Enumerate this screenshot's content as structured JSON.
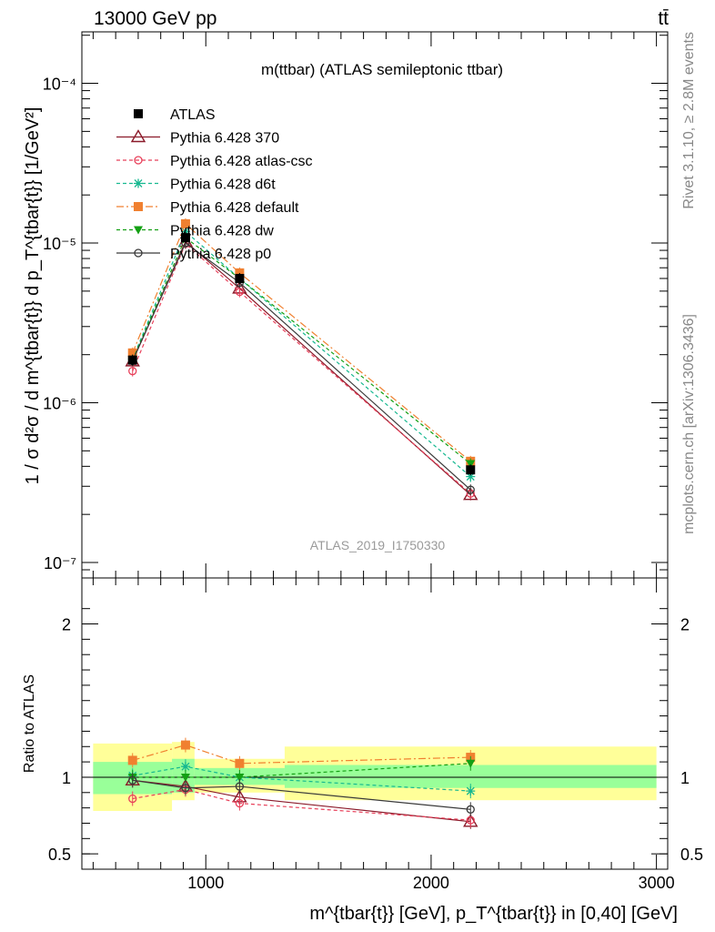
{
  "header": {
    "left": "13000 GeV pp",
    "right": "tt̄"
  },
  "side_labels": {
    "rivet": "Rivet 3.1.10, ≥ 2.8M events",
    "mcplots": "mcplots.cern.ch [arXiv:1306.3436]"
  },
  "chart_data": [
    {
      "type": "line",
      "title": "m(ttbar) (ATLAS semileptonic ttbar)",
      "watermark": "ATLAS_2019_I1750330",
      "ylabel": "1 / σ d²σ / d m^{tbar{t}} d p_T^{tbar{t}} [1/GeV²]",
      "yscale": "log",
      "ylim": [
        8e-08,
        0.00021
      ],
      "xlim": [
        450,
        3050
      ],
      "yticks": [
        {
          "value": 1e-07,
          "label": "10⁻⁷"
        },
        {
          "value": 1e-06,
          "label": "10⁻⁶"
        },
        {
          "value": 1e-05,
          "label": "10⁻⁵"
        },
        {
          "value": 0.0001,
          "label": "10⁻⁴"
        }
      ],
      "legend_position": "top-left",
      "series": [
        {
          "name": "ATLAS",
          "color": "#000000",
          "marker": "square-filled",
          "dash": "none",
          "x": [
            675,
            910,
            1150,
            2175
          ],
          "y": [
            1.85e-06,
            1.08e-05,
            6e-06,
            3.8e-07
          ]
        },
        {
          "name": "Pythia 6.428 370",
          "color": "#8b1a2a",
          "marker": "triangle-open",
          "dash": "solid",
          "x": [
            675,
            910,
            1150,
            2175
          ],
          "y": [
            1.82e-06,
            1.02e-05,
            5.2e-06,
            2.65e-07
          ]
        },
        {
          "name": "Pythia 6.428 atlas-csc",
          "color": "#e8405a",
          "marker": "circle-open",
          "dash": "4,3",
          "x": [
            675,
            910,
            1150,
            2175
          ],
          "y": [
            1.58e-06,
            9.9e-06,
            4.95e-06,
            2.7e-07
          ]
        },
        {
          "name": "Pythia 6.428 d6t",
          "color": "#16b890",
          "marker": "star",
          "dash": "4,3",
          "x": [
            675,
            910,
            1150,
            2175
          ],
          "y": [
            1.88e-06,
            1.18e-05,
            6e-06,
            3.45e-07
          ]
        },
        {
          "name": "Pythia 6.428 default",
          "color": "#f08030",
          "marker": "square-filled",
          "dash": "8,3,2,3",
          "x": [
            675,
            910,
            1150,
            2175
          ],
          "y": [
            2.05e-06,
            1.32e-05,
            6.5e-06,
            4.3e-07
          ]
        },
        {
          "name": "Pythia 6.428 dw",
          "color": "#14a014",
          "marker": "triangle-down-filled",
          "dash": "4,3",
          "x": [
            675,
            910,
            1150,
            2175
          ],
          "y": [
            1.85e-06,
            1.08e-05,
            6e-06,
            4.15e-07
          ]
        },
        {
          "name": "Pythia 6.428 p0",
          "color": "#3a3a3a",
          "marker": "circle-open",
          "dash": "solid",
          "x": [
            675,
            910,
            1150,
            2175
          ],
          "y": [
            1.83e-06,
            1e-05,
            5.65e-06,
            2.85e-07
          ]
        }
      ]
    },
    {
      "type": "line",
      "ylabel": "Ratio to ATLAS",
      "xlabel": "m^{tbar{t}} [GeV], p_T^{tbar{t}} in [0,40] [GeV]",
      "ylim": [
        0.4,
        2.3
      ],
      "xlim": [
        450,
        3050
      ],
      "yticks": [
        {
          "value": 0.5,
          "label": "0.5"
        },
        {
          "value": 1,
          "label": "1"
        },
        {
          "value": 2,
          "label": "2"
        }
      ],
      "xticks": [
        {
          "value": 1000,
          "label": "1000"
        },
        {
          "value": 2000,
          "label": "2000"
        },
        {
          "value": 3000,
          "label": "3000"
        }
      ],
      "bands": [
        {
          "x0": 500,
          "x1": 850,
          "stat": [
            0.89,
            1.1
          ],
          "total": [
            0.78,
            1.22
          ]
        },
        {
          "x0": 850,
          "x1": 950,
          "stat": [
            0.9,
            1.12
          ],
          "total": [
            0.85,
            1.23
          ]
        },
        {
          "x0": 950,
          "x1": 1350,
          "stat": [
            0.95,
            1.06
          ],
          "total": [
            0.9,
            1.12
          ]
        },
        {
          "x0": 1350,
          "x1": 3000,
          "stat": [
            0.93,
            1.08
          ],
          "total": [
            0.85,
            1.2
          ]
        }
      ],
      "series": [
        {
          "name": "Pythia 6.428 370",
          "values": [
            0.98,
            0.94,
            0.87,
            0.71
          ]
        },
        {
          "name": "Pythia 6.428 atlas-csc",
          "values": [
            0.86,
            0.92,
            0.83,
            0.72
          ]
        },
        {
          "name": "Pythia 6.428 d6t",
          "values": [
            1.01,
            1.07,
            1.0,
            0.91
          ]
        },
        {
          "name": "Pythia 6.428 default",
          "values": [
            1.11,
            1.21,
            1.09,
            1.13
          ]
        },
        {
          "name": "Pythia 6.428 dw",
          "values": [
            1.0,
            1.0,
            1.0,
            1.09
          ]
        },
        {
          "name": "Pythia 6.428 p0",
          "values": [
            0.98,
            0.93,
            0.94,
            0.79
          ]
        }
      ],
      "x": [
        675,
        910,
        1150,
        2175
      ]
    }
  ]
}
